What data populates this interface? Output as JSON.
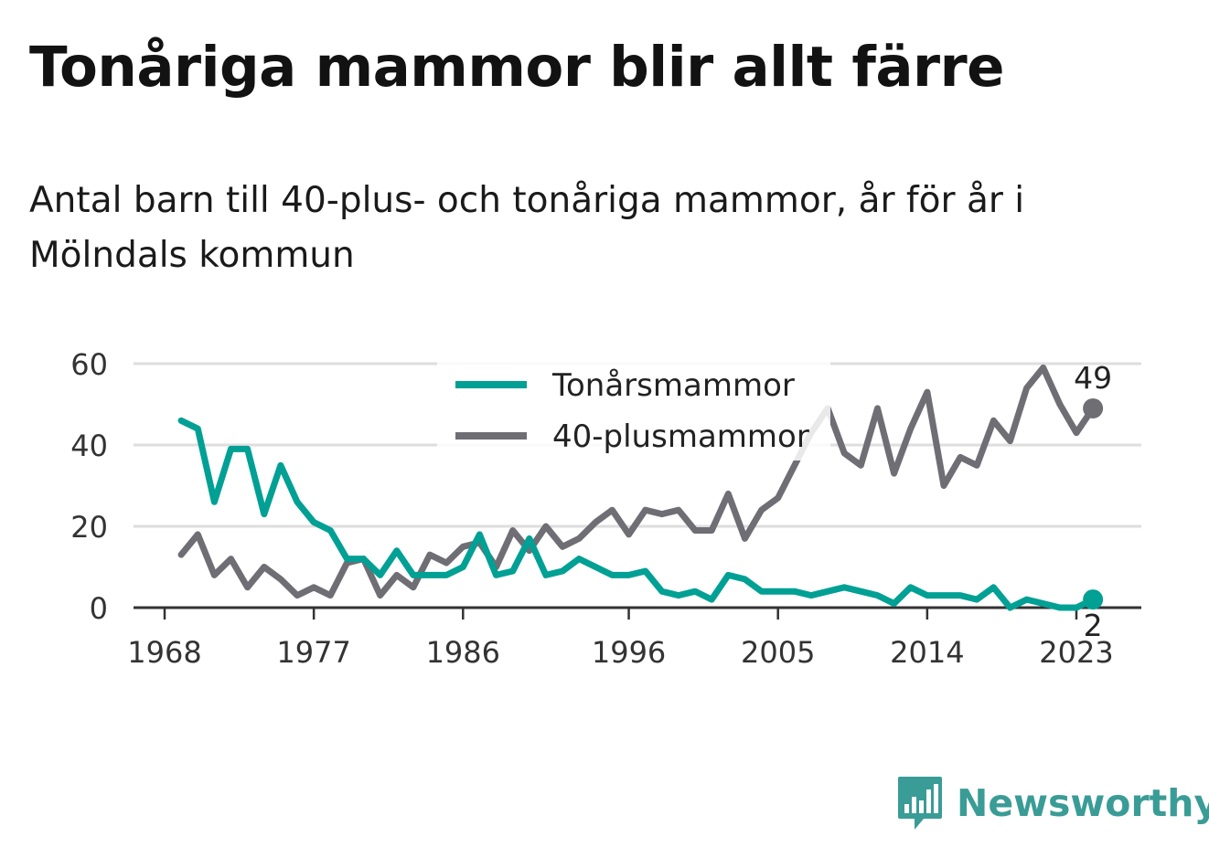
{
  "title": "Tonåriga mammor blir allt färre",
  "subtitle": "Antal barn till 40-plus- och tonåriga mammor, år för år i Mölndals kommun",
  "brand": {
    "name": "Newsworthy",
    "color": "#3a9c96"
  },
  "chart_data": {
    "type": "line",
    "title": "Tonåriga mammor blir allt färre",
    "subtitle": "Antal barn till 40-plus- och tonåriga mammor, år för år i Mölndals kommun",
    "xlabel": "",
    "ylabel": "",
    "xlim": [
      1967,
      2026
    ],
    "ylim": [
      0,
      60
    ],
    "x_ticks": [
      1968,
      1977,
      1986,
      1996,
      2005,
      2014,
      2023
    ],
    "y_ticks": [
      0,
      20,
      40,
      60
    ],
    "grid": true,
    "legend": "top-center",
    "x": [
      1969,
      1970,
      1971,
      1972,
      1973,
      1974,
      1975,
      1976,
      1977,
      1978,
      1979,
      1980,
      1981,
      1982,
      1983,
      1984,
      1985,
      1986,
      1987,
      1988,
      1989,
      1990,
      1991,
      1992,
      1993,
      1994,
      1995,
      1996,
      1997,
      1998,
      1999,
      2000,
      2001,
      2002,
      2003,
      2004,
      2005,
      2006,
      2007,
      2008,
      2009,
      2010,
      2011,
      2012,
      2013,
      2014,
      2015,
      2016,
      2017,
      2018,
      2019,
      2020,
      2021,
      2022,
      2023,
      2024
    ],
    "series": [
      {
        "name": "Tonårsmammor",
        "color": "#00a094",
        "end_label": "2",
        "values": [
          46,
          44,
          26,
          39,
          39,
          23,
          35,
          26,
          21,
          19,
          12,
          12,
          8,
          14,
          8,
          8,
          8,
          10,
          18,
          8,
          9,
          17,
          8,
          9,
          12,
          10,
          8,
          8,
          9,
          4,
          3,
          4,
          2,
          8,
          7,
          4,
          4,
          4,
          3,
          4,
          5,
          4,
          3,
          1,
          5,
          3,
          3,
          3,
          2,
          5,
          0,
          2,
          1,
          0,
          0,
          2
        ]
      },
      {
        "name": "40-plusmammor",
        "color": "#6e6e74",
        "end_label": "49",
        "values": [
          13,
          18,
          8,
          12,
          5,
          10,
          7,
          3,
          5,
          3,
          11,
          12,
          3,
          8,
          5,
          13,
          11,
          15,
          16,
          10,
          19,
          14,
          20,
          15,
          17,
          21,
          24,
          18,
          24,
          23,
          24,
          19,
          19,
          28,
          17,
          24,
          27,
          35,
          43,
          49,
          38,
          35,
          49,
          33,
          44,
          53,
          30,
          37,
          35,
          46,
          41,
          54,
          59,
          50,
          43,
          49
        ]
      }
    ]
  }
}
